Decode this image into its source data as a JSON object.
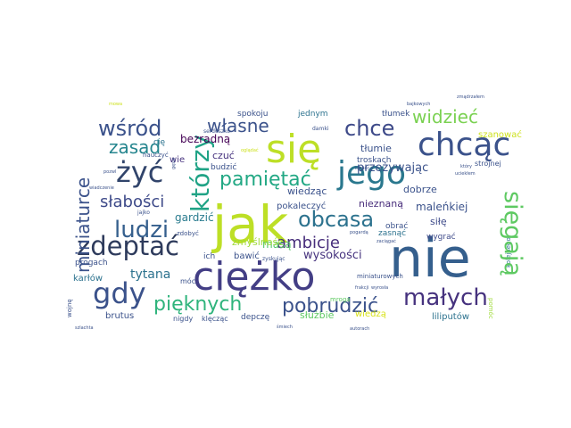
{
  "words": [
    {
      "text": "nie",
      "color": "#355f8d"
    },
    {
      "text": "jak",
      "color": "#bddf26"
    },
    {
      "text": "ciężko",
      "color": "#433e85"
    },
    {
      "text": "się",
      "color": "#bddf26"
    },
    {
      "text": "chcąc",
      "color": "#3b528b"
    },
    {
      "text": "jego",
      "color": "#2a788e"
    },
    {
      "text": "gdy",
      "color": "#3b528b"
    },
    {
      "text": "żyć",
      "color": "#31446b"
    },
    {
      "text": "zdeptać",
      "color": "#2e3b5c"
    },
    {
      "text": "sięgają",
      "color": "#5ec962"
    },
    {
      "text": "którzy",
      "color": "#20a386"
    },
    {
      "text": "wśród",
      "color": "#3b528b"
    },
    {
      "text": "małych",
      "color": "#46327e"
    },
    {
      "text": "pięknych",
      "color": "#2fb47c"
    },
    {
      "text": "pobrudzić",
      "color": "#3b528b"
    },
    {
      "text": "ludzi",
      "color": "#355f8d"
    },
    {
      "text": "obcasa",
      "color": "#2c728e"
    },
    {
      "text": "chce",
      "color": "#3e4a89"
    },
    {
      "text": "pamiętać",
      "color": "#22a884"
    },
    {
      "text": "własne",
      "color": "#3b528b"
    },
    {
      "text": "widzieć",
      "color": "#7ad151"
    },
    {
      "text": "miniaturce",
      "color": "#3b528b"
    },
    {
      "text": "zasad",
      "color": "#25858e"
    },
    {
      "text": "słabości",
      "color": "#3e4a89"
    },
    {
      "text": "ambicje",
      "color": "#472d7b"
    },
    {
      "text": "tytana",
      "color": "#2c728e"
    },
    {
      "text": "wysokości",
      "color": "#46337e"
    },
    {
      "text": "przeżywając",
      "color": "#3b528b"
    },
    {
      "text": "malenkiej",
      "color": "#3b528b"
    },
    {
      "text": "maleńkiej",
      "color": "#3b528b"
    },
    {
      "text": "bezradną",
      "color": "#440154"
    },
    {
      "text": "czuć",
      "color": "#46327e"
    },
    {
      "text": "gardzić",
      "color": "#297b8e"
    },
    {
      "text": "masą",
      "color": "#54c568"
    },
    {
      "text": "wiedząc",
      "color": "#3b528b"
    },
    {
      "text": "pokaleczyć",
      "color": "#3b528b"
    },
    {
      "text": "zmyślność",
      "color": "#9fda3a"
    },
    {
      "text": "nieznaną",
      "color": "#472c7a"
    },
    {
      "text": "dobrze",
      "color": "#3b528b"
    },
    {
      "text": "siłę",
      "color": "#3e4a89"
    },
    {
      "text": "obrać",
      "color": "#3b528b"
    },
    {
      "text": "zasnąć",
      "color": "#2c728e"
    },
    {
      "text": "wygrać",
      "color": "#3e4a89"
    },
    {
      "text": "tłumie",
      "color": "#3b528b"
    },
    {
      "text": "tłumek",
      "color": "#3b528b"
    },
    {
      "text": "szanować",
      "color": "#cde11d"
    },
    {
      "text": "jednym",
      "color": "#2c728e"
    },
    {
      "text": "spokoju",
      "color": "#3b528b"
    },
    {
      "text": "serduszko",
      "color": "#3b528b"
    },
    {
      "text": "budzić",
      "color": "#3b528b"
    },
    {
      "text": "wie",
      "color": "#46327e"
    },
    {
      "text": "cię",
      "color": "#2c728e"
    },
    {
      "text": "nauczyć",
      "color": "#3b528b"
    },
    {
      "text": "jajko",
      "color": "#3b528b"
    },
    {
      "text": "bawić",
      "color": "#3b528b"
    },
    {
      "text": "ich",
      "color": "#3b528b"
    },
    {
      "text": "zdobyć",
      "color": "#3b528b"
    },
    {
      "text": "móc",
      "color": "#3b528b"
    },
    {
      "text": "karłów",
      "color": "#2c728e"
    },
    {
      "text": "progach",
      "color": "#3b528b"
    },
    {
      "text": "wojnę",
      "color": "#3b528b"
    },
    {
      "text": "brutus",
      "color": "#3b528b"
    },
    {
      "text": "nigdy",
      "color": "#3b528b"
    },
    {
      "text": "klęcząc",
      "color": "#3b528b"
    },
    {
      "text": "depczę",
      "color": "#3b528b"
    },
    {
      "text": "służbie",
      "color": "#5ec962"
    },
    {
      "text": "wiedzą",
      "color": "#d8e219"
    },
    {
      "text": "liliputów",
      "color": "#2c728e"
    },
    {
      "text": "miniaturowych",
      "color": "#3b528b"
    },
    {
      "text": "mroga",
      "color": "#5ec962"
    },
    {
      "text": "kolejnego",
      "color": "#2c728e"
    },
    {
      "text": "pomóc",
      "color": "#9fda3a"
    },
    {
      "text": "strojnej",
      "color": "#3b528b"
    },
    {
      "text": "troskach",
      "color": "#3b528b"
    },
    {
      "text": "koniec",
      "color": "#3b528b"
    },
    {
      "text": "damki",
      "color": "#3b528b"
    },
    {
      "text": "zyskując",
      "color": "#3b528b"
    },
    {
      "text": "pogardą",
      "color": "#3b528b"
    },
    {
      "text": "zaciągać",
      "color": "#3b528b"
    },
    {
      "text": "frakcji",
      "color": "#3b528b"
    },
    {
      "text": "koniec",
      "color": "#3b528b"
    },
    {
      "text": "wyrosła",
      "color": "#3b528b"
    },
    {
      "text": "bajkowych",
      "color": "#3b528b"
    },
    {
      "text": "uciekłem",
      "color": "#3b528b"
    },
    {
      "text": "zmądrzałem",
      "color": "#3b528b"
    },
    {
      "text": "mowa",
      "color": "#cde11d"
    },
    {
      "text": "oglądać",
      "color": "#cde11d"
    },
    {
      "text": "pozwl",
      "color": "#3b528b"
    },
    {
      "text": "gęsie",
      "color": "#3b528b"
    },
    {
      "text": "wiadczenie",
      "color": "#3b528b"
    },
    {
      "text": "szlachta",
      "color": "#3b528b"
    },
    {
      "text": "śmiech",
      "color": "#3b528b"
    },
    {
      "text": "autorach",
      "color": "#3b528b"
    },
    {
      "text": "który",
      "color": "#3b528b"
    }
  ]
}
